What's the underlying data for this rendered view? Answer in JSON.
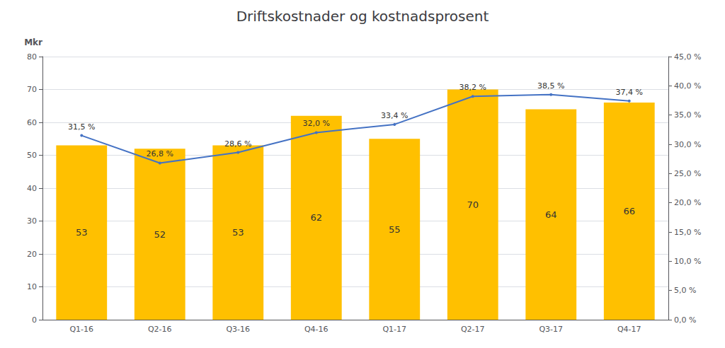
{
  "chart_data": {
    "type": "bar",
    "title": "Driftskostnader og kostnadsprosent",
    "categories": [
      "Q1-16",
      "Q2-16",
      "Q3-16",
      "Q4-16",
      "Q1-17",
      "Q2-17",
      "Q3-17",
      "Q4-17"
    ],
    "ylabel": "Mkr",
    "ylim": [
      0,
      80
    ],
    "yticks": [
      0,
      10,
      20,
      30,
      40,
      50,
      60,
      70,
      80
    ],
    "y2lim": [
      0,
      45.0
    ],
    "y2ticks": [
      {
        "value": 0.0,
        "label": "0,0 %"
      },
      {
        "value": 5.0,
        "label": "5,0 %"
      },
      {
        "value": 10.0,
        "label": "10,0 %"
      },
      {
        "value": 15.0,
        "label": "15,0 %"
      },
      {
        "value": 20.0,
        "label": "20,0 %"
      },
      {
        "value": 25.0,
        "label": "25,0 %"
      },
      {
        "value": 30.0,
        "label": "30,0 %"
      },
      {
        "value": 35.0,
        "label": "35,0 %"
      },
      {
        "value": 40.0,
        "label": "40,0 %"
      },
      {
        "value": 45.0,
        "label": "45,0 %"
      }
    ],
    "grid": true,
    "series": [
      {
        "type": "bar",
        "color": "#FFC000",
        "data_labels": true,
        "values": [
          53,
          52,
          53,
          62,
          55,
          70,
          64,
          66
        ]
      },
      {
        "type": "line",
        "axis": "y2",
        "color": "#4472C4",
        "data_labels": true,
        "values": [
          31.5,
          26.8,
          28.6,
          32.0,
          33.4,
          38.2,
          38.5,
          37.4
        ],
        "value_labels": [
          "31,5 %",
          "26,8 %",
          "28,6 %",
          "32,0 %",
          "33,4 %",
          "38,2 %",
          "38,5 %",
          "37,4 %"
        ]
      }
    ]
  }
}
